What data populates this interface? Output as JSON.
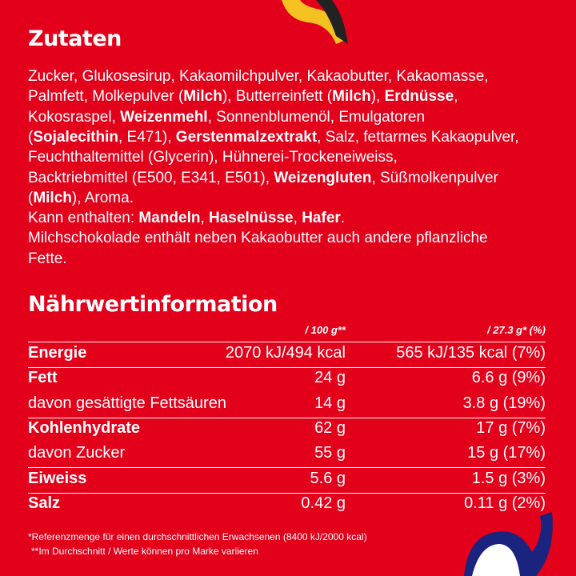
{
  "ingredients": {
    "title": "Zutaten",
    "lines": [
      [
        {
          "text": "Zucker, Glukosesirup, Kakaomilchpulver, Kakaobutter, Kakaomasse,",
          "bold": false
        }
      ],
      [
        {
          "text": "Palmfett, Molkepulver (",
          "bold": false
        },
        {
          "text": "Milch",
          "bold": true
        },
        {
          "text": "), Butterreinfett (",
          "bold": false
        },
        {
          "text": "Milch",
          "bold": true
        },
        {
          "text": "), ",
          "bold": false
        },
        {
          "text": "Erdnüsse",
          "bold": true
        },
        {
          "text": ",",
          "bold": false
        }
      ],
      [
        {
          "text": "Kokosraspel, ",
          "bold": false
        },
        {
          "text": "Weizenmehl",
          "bold": true
        },
        {
          "text": ", Sonnenblumenöl, Emulgatoren",
          "bold": false
        }
      ],
      [
        {
          "text": "(",
          "bold": false
        },
        {
          "text": "Sojalecithin",
          "bold": true
        },
        {
          "text": ", E471), ",
          "bold": false
        },
        {
          "text": "Gerstenmalzextrakt",
          "bold": true
        },
        {
          "text": ", Salz, fettarmes Kakaopulver,",
          "bold": false
        }
      ],
      [
        {
          "text": "Feuchthaltemittel (Glycerin), Hühnerei-Trockeneiweiss,",
          "bold": false
        }
      ],
      [
        {
          "text": "Backtriebmittel (E500, E341, E501), ",
          "bold": false
        },
        {
          "text": "Weizengluten",
          "bold": true
        },
        {
          "text": ", Süßmolkenpulver",
          "bold": false
        }
      ],
      [
        {
          "text": "(",
          "bold": false
        },
        {
          "text": "Milch",
          "bold": true
        },
        {
          "text": "), Aroma.",
          "bold": false
        }
      ],
      [
        {
          "text": "Kann enthalten: ",
          "bold": false
        },
        {
          "text": "Mandeln",
          "bold": true
        },
        {
          "text": ", ",
          "bold": false
        },
        {
          "text": "Haselnüsse",
          "bold": true
        },
        {
          "text": ", ",
          "bold": false
        },
        {
          "text": "Hafer",
          "bold": true
        },
        {
          "text": ".",
          "bold": false
        }
      ],
      [
        {
          "text": "Milchschokolade enthält neben Kakaobutter auch andere pflanzliche",
          "bold": false
        }
      ],
      [
        {
          "text": "Fette.",
          "bold": false
        }
      ]
    ]
  },
  "nutrition": {
    "title": "Nährwertinformation",
    "header": [
      "/ 100 g**",
      "/ 27.3 g* (%)"
    ],
    "rows": [
      {
        "label": "Energie",
        "per100": "2070 kJ/494 kcal",
        "portion": "565 kJ/135 kcal (7%)",
        "bold": true,
        "line_below": true
      },
      {
        "label": "Fett",
        "per100": "24 g",
        "portion": "6.6 g (9%)",
        "bold": true,
        "line_below": false
      },
      {
        "label": "davon gesättigte Fettsäuren",
        "per100": "14 g",
        "portion": "3.8 g (19%)",
        "bold": false,
        "line_below": true
      },
      {
        "label": "Kohlenhydrate",
        "per100": "62 g",
        "portion": "17 g (7%)",
        "bold": true,
        "line_below": false
      },
      {
        "label": "davon Zucker",
        "per100": "55 g",
        "portion": "15 g (17%)",
        "bold": false,
        "line_below": true
      },
      {
        "label": "Eiweiss",
        "per100": "5.6 g",
        "portion": "1.5 g (3%)",
        "bold": true,
        "line_below": true
      },
      {
        "label": "Salz",
        "per100": "0.42 g",
        "portion": "0.11 g (2%)",
        "bold": true,
        "line_below": false
      }
    ]
  },
  "footnotes": [
    "*Referenzmenge für einen durchschnittlichen Erwachsenen (8400 kJ/2000 kcal)",
    "**Im Durchschnitt / Werte können pro Marke variieren"
  ]
}
